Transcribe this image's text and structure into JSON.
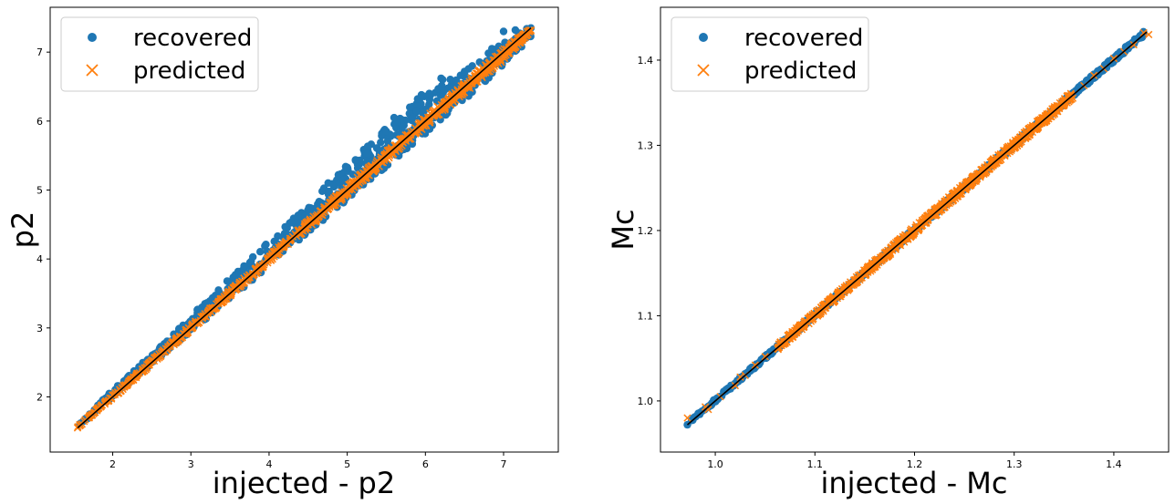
{
  "chart_data": [
    {
      "type": "scatter",
      "xlabel": "injected - p2",
      "ylabel": "p2",
      "xlim": [
        1.2,
        7.7
      ],
      "ylim": [
        1.2,
        7.65
      ],
      "xticks": [
        2,
        3,
        4,
        5,
        6,
        7
      ],
      "yticks": [
        2,
        3,
        4,
        5,
        6,
        7
      ],
      "legend_position": "upper-left",
      "grid": false,
      "series": [
        {
          "name": "recovered",
          "marker": "circle",
          "color": "#1f77b4",
          "band": [
            [
              1.55,
              1.55,
              1.6
            ],
            [
              2.0,
              2.0,
              2.1
            ],
            [
              2.5,
              2.48,
              2.62
            ],
            [
              3.0,
              2.95,
              3.18
            ],
            [
              3.5,
              3.42,
              3.72
            ],
            [
              4.0,
              3.9,
              4.26
            ],
            [
              4.5,
              4.38,
              4.82
            ],
            [
              5.0,
              4.86,
              5.38
            ],
            [
              5.5,
              5.34,
              5.9
            ],
            [
              6.0,
              5.82,
              6.4
            ],
            [
              6.5,
              6.3,
              6.72
            ],
            [
              7.0,
              6.82,
              7.15
            ],
            [
              7.35,
              7.2,
              7.38
            ]
          ],
          "extra_points": [
            [
              6.2,
              6.62
            ],
            [
              6.22,
              6.6
            ],
            [
              5.9,
              6.32
            ],
            [
              5.95,
              6.38
            ],
            [
              6.5,
              6.72
            ],
            [
              6.9,
              6.93
            ],
            [
              7.0,
              7.3
            ],
            [
              7.15,
              7.32
            ],
            [
              7.35,
              7.35
            ],
            [
              5.8,
              6.2
            ],
            [
              5.6,
              6.05
            ],
            [
              6.05,
              6.4
            ],
            [
              6.6,
              6.8
            ],
            [
              6.85,
              7.05
            ],
            [
              5.5,
              5.85
            ]
          ]
        },
        {
          "name": "predicted",
          "marker": "x",
          "color": "#ff7f0e",
          "band": [
            [
              1.55,
              1.55,
              1.58
            ],
            [
              2.0,
              1.98,
              2.03
            ],
            [
              3.0,
              2.96,
              3.04
            ],
            [
              4.0,
              3.95,
              4.05
            ],
            [
              5.0,
              4.93,
              5.06
            ],
            [
              6.0,
              5.92,
              6.06
            ],
            [
              7.0,
              6.88,
              7.05
            ],
            [
              7.35,
              7.3,
              7.35
            ]
          ],
          "extra_points": [
            [
              1.55,
              1.55
            ],
            [
              1.7,
              1.7
            ],
            [
              1.8,
              1.8
            ],
            [
              1.95,
              1.95
            ],
            [
              2.1,
              2.08
            ],
            [
              6.75,
              6.7
            ],
            [
              6.9,
              6.82
            ],
            [
              7.3,
              7.3
            ],
            [
              7.35,
              7.32
            ]
          ]
        },
        {
          "name": "",
          "marker": "line",
          "color": "#000000",
          "x": [
            1.55,
            7.35
          ],
          "y": [
            1.55,
            7.35
          ]
        }
      ]
    },
    {
      "type": "scatter",
      "xlabel": "injected - Mc",
      "ylabel": "Mc",
      "xlim": [
        0.945,
        1.455
      ],
      "ylim": [
        0.94,
        1.462
      ],
      "xticks": [
        1.0,
        1.1,
        1.2,
        1.3,
        1.4
      ],
      "yticks": [
        1.0,
        1.1,
        1.2,
        1.3,
        1.4
      ],
      "legend_position": "upper-left",
      "grid": false,
      "series": [
        {
          "name": "recovered",
          "marker": "circle",
          "color": "#1f77b4",
          "band": [
            [
              0.975,
              0.974,
              0.978
            ],
            [
              1.2,
              1.198,
              1.203
            ],
            [
              1.43,
              1.428,
              1.434
            ]
          ],
          "extra_points": [
            [
              0.972,
              0.972
            ],
            [
              1.005,
              1.005
            ],
            [
              1.02,
              1.02
            ],
            [
              1.035,
              1.035
            ],
            [
              1.045,
              1.045
            ],
            [
              1.43,
              1.432
            ]
          ]
        },
        {
          "name": "predicted",
          "marker": "x",
          "color": "#ff7f0e",
          "band": [
            [
              1.06,
              1.057,
              1.064
            ],
            [
              1.2,
              1.196,
              1.205
            ],
            [
              1.36,
              1.356,
              1.365
            ]
          ],
          "extra_points": [
            [
              0.972,
              0.98
            ],
            [
              0.99,
              0.993
            ],
            [
              0.993,
              0.99
            ],
            [
              1.005,
              1.005
            ],
            [
              1.02,
              1.018
            ],
            [
              1.025,
              1.028
            ],
            [
              1.03,
              1.03
            ],
            [
              1.04,
              1.042
            ],
            [
              1.05,
              1.052
            ],
            [
              1.37,
              1.37
            ],
            [
              1.38,
              1.382
            ],
            [
              1.39,
              1.39
            ],
            [
              1.4,
              1.402
            ],
            [
              1.41,
              1.41
            ],
            [
              1.42,
              1.418
            ],
            [
              1.43,
              1.432
            ],
            [
              1.435,
              1.43
            ]
          ]
        },
        {
          "name": "",
          "marker": "line",
          "color": "#000000",
          "x": [
            0.972,
            1.433
          ],
          "y": [
            0.972,
            1.433
          ]
        }
      ]
    }
  ]
}
